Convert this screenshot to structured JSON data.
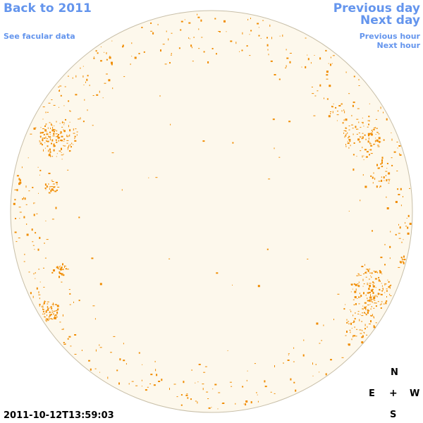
{
  "nav": {
    "back_label": "Back to 2011",
    "facular_label": "See facular data",
    "prev_day_label": "Previous day",
    "next_day_label": "Next day",
    "prev_hour_label": "Previous hour",
    "next_hour_label": "Next hour"
  },
  "timestamp": "2011-10-12T13:59:03",
  "compass": {
    "north": "N",
    "east": "E",
    "center": "+",
    "west": "W",
    "south": "S"
  },
  "colors": {
    "disk_fill": "#fdf8ec",
    "disk_edge": "#c8bfa8",
    "facula": "#f08c00",
    "link": "#6495ed"
  }
}
